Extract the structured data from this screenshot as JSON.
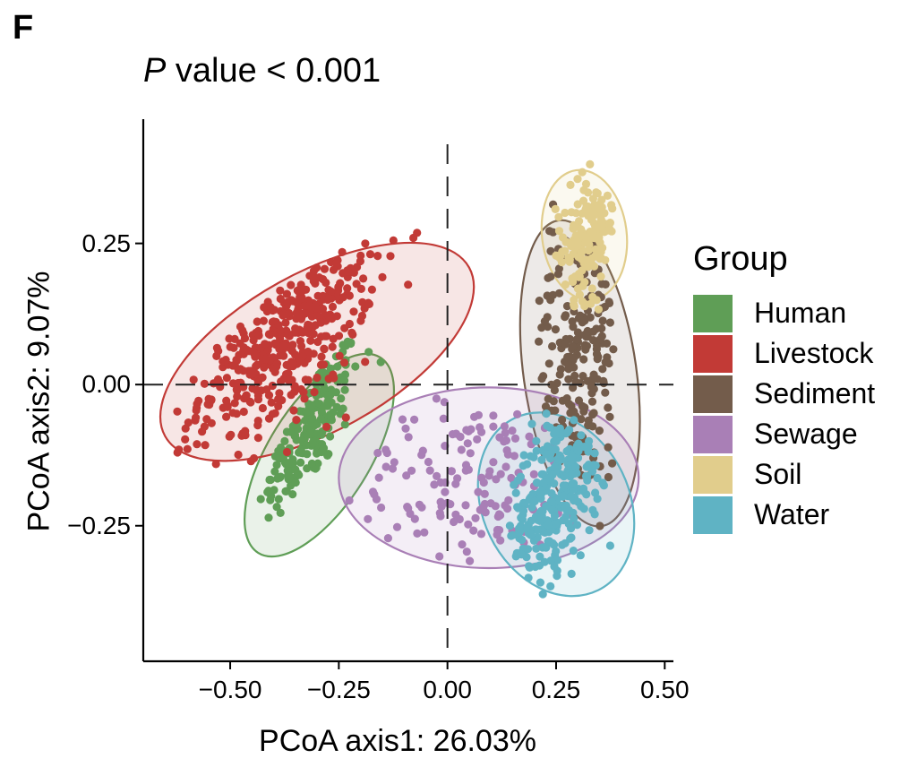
{
  "panel": {
    "letter": "F",
    "p_prefix": "P",
    "p_text": " value < 0.001"
  },
  "colors": {
    "Human": "#5f9e56",
    "Livestock": "#c23a36",
    "Sediment": "#735c4b",
    "Sewage": "#a97fb6",
    "Soil": "#e1cd8c",
    "Water": "#5fb3c4"
  },
  "chart_data": {
    "type": "scatter",
    "title": "P value < 0.001",
    "xlabel": "PCoA axis1: 26.03%",
    "ylabel": "PCoA axis2: 9.07%",
    "xlim": [
      -0.7,
      0.52
    ],
    "ylim": [
      -0.49,
      0.47
    ],
    "xticks": [
      -0.5,
      -0.25,
      0.0,
      0.25,
      0.5
    ],
    "xtick_labels": [
      "−0.50",
      "−0.25",
      "0.00",
      "0.25",
      "0.50"
    ],
    "yticks": [
      0.25,
      0.0,
      -0.25
    ],
    "ytick_labels": [
      "0.25",
      "0.00",
      "−0.25"
    ],
    "reference_lines": {
      "x": 0.0,
      "y": 0.0,
      "style": "dashed"
    },
    "grid": false,
    "legend": {
      "title": "Group",
      "position": "right"
    },
    "series": [
      {
        "name": "Human",
        "ellipse": {
          "center": [
            -0.295,
            -0.125
          ],
          "a": 0.265,
          "b": 0.09,
          "angle_deg": -58
        },
        "cluster": {
          "center": [
            -0.32,
            -0.08
          ],
          "sx": 0.06,
          "sy": 0.075,
          "rho": 0.75,
          "n": 190
        }
      },
      {
        "name": "Livestock",
        "ellipse": {
          "center": [
            -0.3,
            0.058
          ],
          "a": 0.4,
          "b": 0.14,
          "angle_deg": -29
        },
        "cluster": {
          "center": [
            -0.37,
            0.1
          ],
          "sx": 0.1,
          "sy": 0.1,
          "rho": 0.6,
          "n": 420
        }
      },
      {
        "name": "Sediment",
        "ellipse": {
          "center": [
            0.305,
            0.02
          ],
          "a": 0.355,
          "b": 0.1,
          "angle_deg": 82
        },
        "cluster": {
          "center": [
            0.3,
            0.05
          ],
          "sx": 0.055,
          "sy": 0.13,
          "rho": 0.25,
          "n": 210
        }
      },
      {
        "name": "Sewage",
        "ellipse": {
          "center": [
            0.095,
            -0.165
          ],
          "a": 0.345,
          "b": 0.16,
          "angle_deg": 0
        },
        "cluster": {
          "center": [
            0.06,
            -0.17
          ],
          "sx": 0.14,
          "sy": 0.07,
          "rho": 0.0,
          "n": 150
        }
      },
      {
        "name": "Soil",
        "ellipse": {
          "center": [
            0.315,
            0.265
          ],
          "a": 0.15,
          "b": 0.075,
          "angle_deg": 83
        },
        "cluster": {
          "center": [
            0.32,
            0.26
          ],
          "sx": 0.035,
          "sy": 0.055,
          "rho": 0.3,
          "n": 160
        }
      },
      {
        "name": "Water",
        "ellipse": {
          "center": [
            0.25,
            -0.212
          ],
          "a": 0.22,
          "b": 0.13,
          "angle_deg": 64
        },
        "cluster": {
          "center": [
            0.25,
            -0.19
          ],
          "sx": 0.06,
          "sy": 0.09,
          "rho": 0.6,
          "n": 300
        }
      }
    ]
  }
}
